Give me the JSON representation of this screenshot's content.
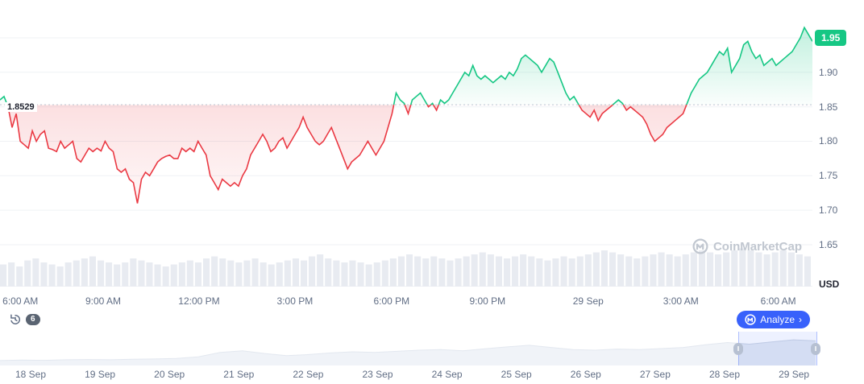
{
  "chart": {
    "baseline_label": "1.8529",
    "current_price": "1.95",
    "watermark": "CoinMarketCap",
    "y_axis": {
      "ticks": [
        "1.95",
        "1.90",
        "1.85",
        "1.80",
        "1.75",
        "1.70",
        "1.65"
      ],
      "unit": "USD"
    }
  },
  "toolbar": {
    "history_badge": "6",
    "analyze_label": "Analyze",
    "analyze_chevron": "›"
  },
  "scrubber": {
    "handle_icon": "‖",
    "dates": [
      "18 Sep",
      "19 Sep",
      "20 Sep",
      "21 Sep",
      "22 Sep",
      "23 Sep",
      "24 Sep",
      "25 Sep",
      "26 Sep",
      "27 Sep",
      "28 Sep",
      "29 Sep"
    ]
  },
  "chart_data": {
    "type": "line",
    "title": "",
    "unit": "USD",
    "baseline": 1.8529,
    "last_price": 1.95,
    "up_color": "#16c784",
    "down_color": "#ea3943",
    "ylim": [
      1.63,
      1.98
    ],
    "y_ticks": [
      1.95,
      1.9,
      1.85,
      1.8,
      1.75,
      1.7,
      1.65
    ],
    "x_labels": [
      {
        "text": "6:00 AM",
        "pos": 0.025
      },
      {
        "text": "9:00 AM",
        "pos": 0.127
      },
      {
        "text": "12:00 PM",
        "pos": 0.245
      },
      {
        "text": "3:00 PM",
        "pos": 0.363
      },
      {
        "text": "6:00 PM",
        "pos": 0.482
      },
      {
        "text": "9:00 PM",
        "pos": 0.6
      },
      {
        "text": "29 Sep",
        "pos": 0.724
      },
      {
        "text": "3:00 AM",
        "pos": 0.838
      },
      {
        "text": "6:00 AM",
        "pos": 0.958
      }
    ],
    "prices": [
      1.86,
      1.865,
      1.85,
      1.82,
      1.84,
      1.8,
      1.795,
      1.79,
      1.815,
      1.8,
      1.81,
      1.815,
      1.79,
      1.788,
      1.785,
      1.8,
      1.79,
      1.795,
      1.8,
      1.775,
      1.77,
      1.78,
      1.79,
      1.785,
      1.79,
      1.786,
      1.8,
      1.79,
      1.785,
      1.76,
      1.755,
      1.76,
      1.745,
      1.74,
      1.71,
      1.745,
      1.755,
      1.75,
      1.76,
      1.77,
      1.775,
      1.778,
      1.78,
      1.775,
      1.775,
      1.79,
      1.785,
      1.79,
      1.785,
      1.8,
      1.79,
      1.78,
      1.75,
      1.74,
      1.73,
      1.745,
      1.74,
      1.735,
      1.74,
      1.735,
      1.75,
      1.76,
      1.78,
      1.79,
      1.8,
      1.81,
      1.8,
      1.785,
      1.79,
      1.8,
      1.805,
      1.79,
      1.8,
      1.81,
      1.82,
      1.835,
      1.82,
      1.81,
      1.8,
      1.795,
      1.8,
      1.81,
      1.82,
      1.805,
      1.79,
      1.775,
      1.76,
      1.77,
      1.775,
      1.78,
      1.79,
      1.8,
      1.79,
      1.78,
      1.79,
      1.8,
      1.82,
      1.84,
      1.87,
      1.86,
      1.855,
      1.84,
      1.86,
      1.865,
      1.87,
      1.86,
      1.85,
      1.855,
      1.845,
      1.86,
      1.855,
      1.86,
      1.87,
      1.88,
      1.89,
      1.9,
      1.895,
      1.91,
      1.895,
      1.89,
      1.895,
      1.89,
      1.885,
      1.89,
      1.895,
      1.89,
      1.9,
      1.895,
      1.905,
      1.92,
      1.925,
      1.92,
      1.915,
      1.91,
      1.9,
      1.91,
      1.92,
      1.915,
      1.9,
      1.885,
      1.87,
      1.86,
      1.865,
      1.855,
      1.845,
      1.84,
      1.835,
      1.845,
      1.83,
      1.84,
      1.845,
      1.85,
      1.855,
      1.86,
      1.855,
      1.845,
      1.85,
      1.845,
      1.84,
      1.835,
      1.825,
      1.81,
      1.8,
      1.805,
      1.81,
      1.82,
      1.825,
      1.83,
      1.835,
      1.84,
      1.855,
      1.87,
      1.88,
      1.89,
      1.895,
      1.9,
      1.91,
      1.92,
      1.93,
      1.925,
      1.935,
      1.9,
      1.91,
      1.92,
      1.94,
      1.945,
      1.93,
      1.92,
      1.925,
      1.91,
      1.915,
      1.92,
      1.91,
      1.915,
      1.92,
      1.925,
      1.93,
      1.94,
      1.95,
      1.965,
      1.955,
      1.945
    ],
    "volume": [
      0.55,
      0.6,
      0.5,
      0.65,
      0.7,
      0.6,
      0.55,
      0.5,
      0.6,
      0.65,
      0.7,
      0.75,
      0.65,
      0.6,
      0.55,
      0.6,
      0.7,
      0.65,
      0.6,
      0.55,
      0.5,
      0.55,
      0.6,
      0.65,
      0.6,
      0.7,
      0.75,
      0.7,
      0.65,
      0.6,
      0.65,
      0.7,
      0.6,
      0.55,
      0.6,
      0.65,
      0.7,
      0.65,
      0.75,
      0.8,
      0.7,
      0.65,
      0.6,
      0.65,
      0.6,
      0.55,
      0.6,
      0.65,
      0.7,
      0.75,
      0.8,
      0.75,
      0.7,
      0.75,
      0.7,
      0.65,
      0.7,
      0.75,
      0.8,
      0.85,
      0.8,
      0.75,
      0.7,
      0.75,
      0.8,
      0.75,
      0.7,
      0.65,
      0.7,
      0.75,
      0.7,
      0.75,
      0.8,
      0.85,
      0.9,
      0.85,
      0.8,
      0.75,
      0.7,
      0.75,
      0.8,
      0.85,
      0.8,
      0.75,
      0.8,
      0.85,
      0.9,
      0.85,
      0.8,
      0.85,
      0.9,
      0.95,
      0.9,
      0.85,
      0.8,
      0.85,
      0.9,
      0.85,
      0.8,
      0.75
    ],
    "mini_series": [
      0.12,
      0.14,
      0.13,
      0.15,
      0.16,
      0.15,
      0.17,
      0.18,
      0.2,
      0.26,
      0.42,
      0.48,
      0.38,
      0.3,
      0.34,
      0.4,
      0.44,
      0.42,
      0.46,
      0.5,
      0.52,
      0.48,
      0.55,
      0.62,
      0.68,
      0.6,
      0.52,
      0.5,
      0.54,
      0.52,
      0.56,
      0.6,
      0.7,
      0.78,
      0.72,
      0.8,
      0.88,
      0.84
    ]
  }
}
